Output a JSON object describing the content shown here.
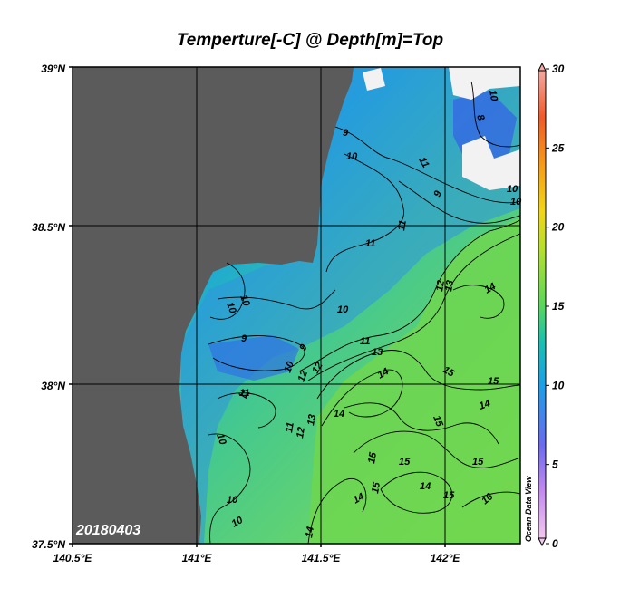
{
  "title": "Temperture[-C] @ Depth[m]=Top",
  "date_stamp": "20180403",
  "watermark": "Ocean Data View",
  "axes": {
    "lon_labels": [
      "140.5°E",
      "141°E",
      "141.5°E",
      "142°E"
    ],
    "lat_labels": [
      "39°N",
      "38.5°N",
      "38°N",
      "37.5°N"
    ],
    "lon_range": [
      140.5,
      142.3
    ],
    "lat_range": [
      37.5,
      39.0
    ]
  },
  "colorbar": {
    "min": 0,
    "max": 30,
    "tick_labels": [
      "30",
      "25",
      "20",
      "15",
      "10",
      "5",
      "0"
    ]
  },
  "contour_labels": [
    "10",
    "10",
    "9",
    "8",
    "9",
    "10",
    "10",
    "11",
    "11",
    "11",
    "10",
    "10",
    "10",
    "9",
    "9",
    "10",
    "11",
    "12",
    "11",
    "12",
    "13",
    "11",
    "13",
    "12",
    "13",
    "14",
    "14",
    "14",
    "15",
    "14",
    "15",
    "15",
    "15",
    "14",
    "15",
    "15",
    "15",
    "14",
    "16",
    "10",
    "10",
    "14",
    "15",
    "12",
    "11",
    "10"
  ],
  "colors": {
    "land": "#5b5b5b",
    "missing": "#f2f2f2",
    "cold_water": "#3f86e8",
    "mid_water": "#1eaecf",
    "warm_water": "#72dc55"
  }
}
